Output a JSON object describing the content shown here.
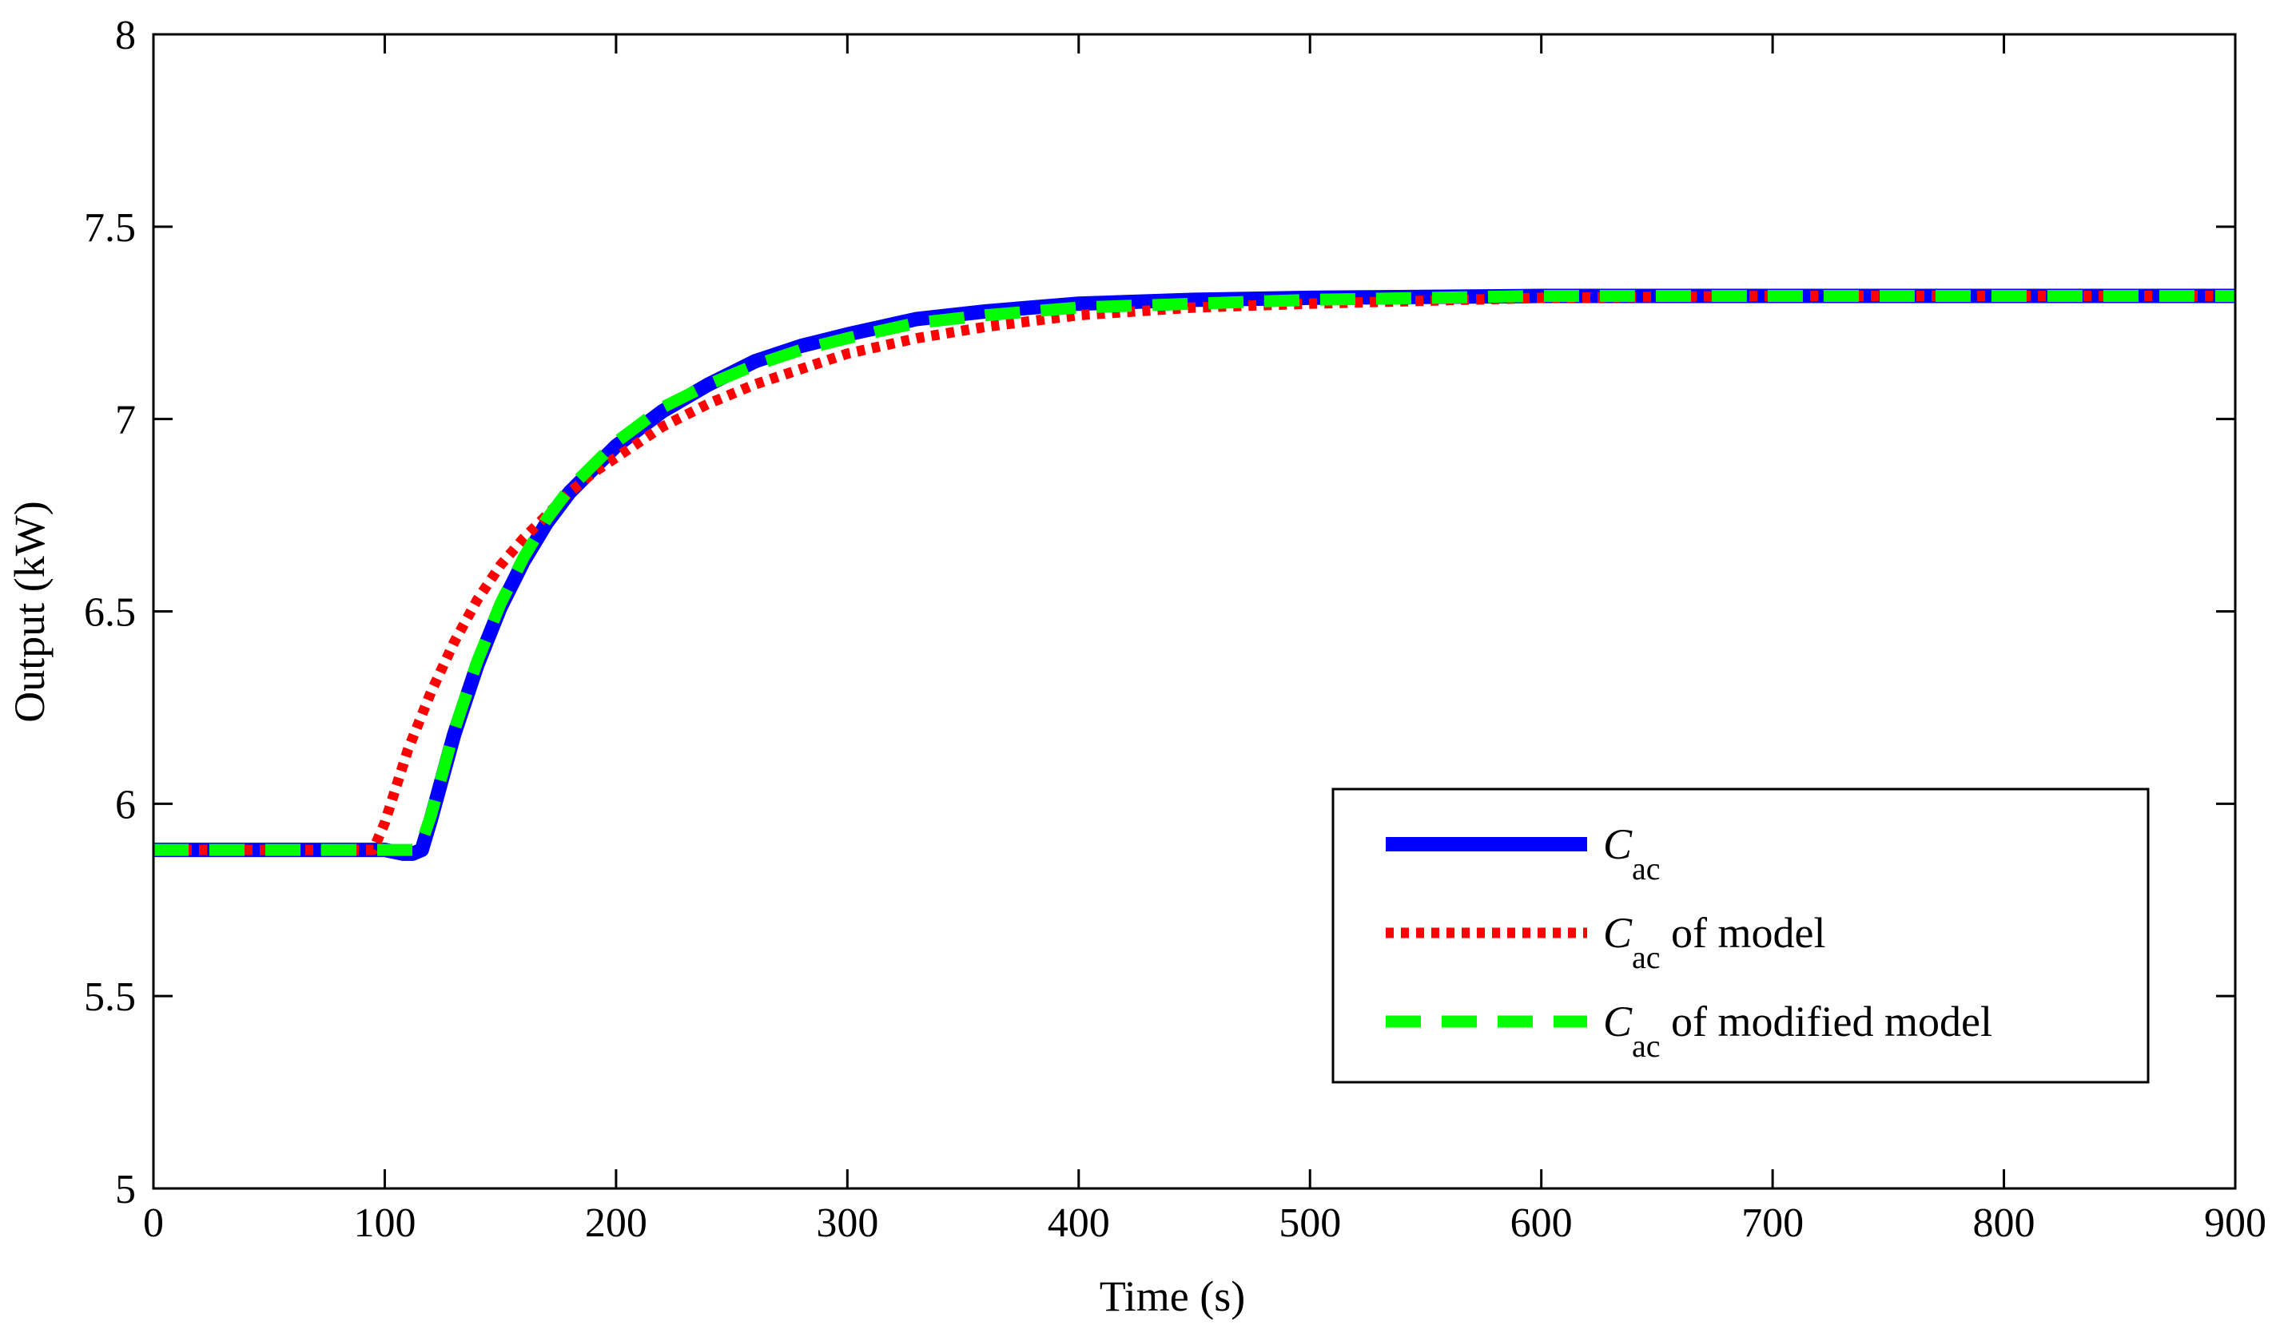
{
  "chart_data": {
    "type": "line",
    "title": "",
    "xlabel": "Time (s)",
    "ylabel": "Output (kW)",
    "xlim": [
      0,
      900
    ],
    "ylim": [
      5,
      8
    ],
    "xticks": [
      0,
      100,
      200,
      300,
      400,
      500,
      600,
      700,
      800,
      900
    ],
    "xtick_labels": [
      "0",
      "100",
      "200",
      "300",
      "400",
      "500",
      "600",
      "700",
      "800",
      "900"
    ],
    "yticks": [
      5,
      5.5,
      6,
      6.5,
      7,
      7.5,
      8
    ],
    "ytick_labels": [
      "5",
      "5.5",
      "6",
      "6.5",
      "7",
      "7.5",
      "8"
    ],
    "grid": false,
    "legend_position": "bottom-right",
    "series": [
      {
        "name": "Cac",
        "legend_main": "C",
        "legend_sub": "ac",
        "legend_suffix": "",
        "color": "#0000ff",
        "style": "solid",
        "x": [
          0,
          100,
          108,
          112,
          116,
          120,
          130,
          140,
          150,
          160,
          170,
          180,
          190,
          200,
          220,
          240,
          260,
          280,
          300,
          330,
          360,
          400,
          450,
          500,
          600,
          700,
          800,
          900
        ],
        "y": [
          5.88,
          5.88,
          5.87,
          5.87,
          5.88,
          5.96,
          6.18,
          6.36,
          6.51,
          6.63,
          6.73,
          6.81,
          6.87,
          6.93,
          7.02,
          7.09,
          7.15,
          7.19,
          7.22,
          7.26,
          7.28,
          7.3,
          7.31,
          7.315,
          7.32,
          7.32,
          7.32,
          7.32
        ]
      },
      {
        "name": "Cac of model",
        "legend_main": "C",
        "legend_sub": "ac",
        "legend_suffix": " of model",
        "color": "#ff0000",
        "style": "dotted",
        "x": [
          0,
          95,
          100,
          110,
          120,
          130,
          140,
          150,
          160,
          170,
          180,
          190,
          200,
          220,
          240,
          260,
          280,
          300,
          330,
          360,
          400,
          450,
          500,
          600,
          700,
          800,
          900
        ],
        "y": [
          5.88,
          5.88,
          5.95,
          6.14,
          6.29,
          6.42,
          6.53,
          6.62,
          6.69,
          6.75,
          6.81,
          6.86,
          6.9,
          6.98,
          7.04,
          7.09,
          7.13,
          7.17,
          7.21,
          7.24,
          7.27,
          7.29,
          7.3,
          7.315,
          7.32,
          7.32,
          7.32
        ]
      },
      {
        "name": "Cac of modified model",
        "legend_main": "C",
        "legend_sub": "ac",
        "legend_suffix": " of modified model",
        "color": "#00ff00",
        "style": "dashed",
        "x": [
          0,
          112,
          116,
          120,
          130,
          140,
          150,
          160,
          170,
          180,
          190,
          200,
          220,
          240,
          260,
          280,
          300,
          330,
          360,
          400,
          450,
          500,
          600,
          700,
          800,
          900
        ],
        "y": [
          5.88,
          5.88,
          5.9,
          5.97,
          6.19,
          6.37,
          6.52,
          6.64,
          6.74,
          6.82,
          6.88,
          6.94,
          7.03,
          7.09,
          7.14,
          7.18,
          7.21,
          7.25,
          7.27,
          7.29,
          7.3,
          7.31,
          7.32,
          7.32,
          7.32,
          7.32
        ]
      }
    ]
  }
}
